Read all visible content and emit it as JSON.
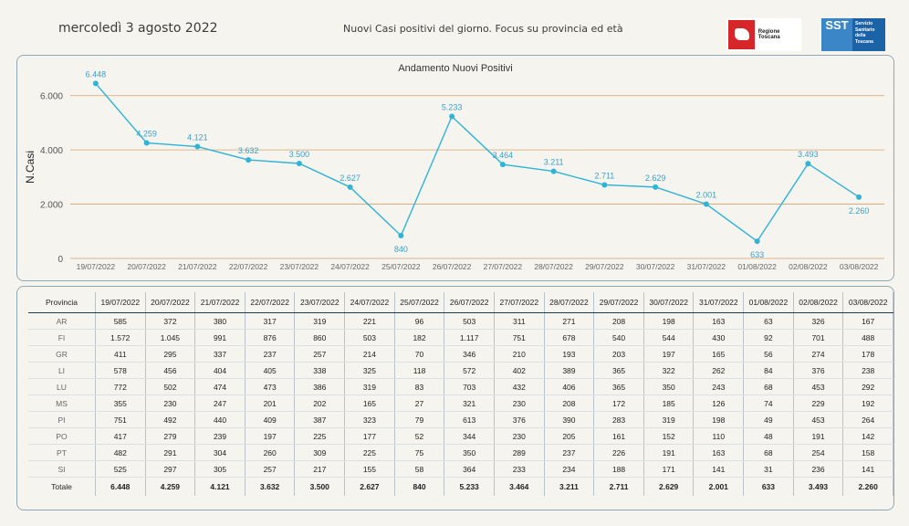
{
  "header": {
    "date": "mercoledì 3 agosto 2022",
    "subtitle": "Nuovi Casi positivi del giorno. Focus su provincia ed età",
    "logo_regione": "Regione Toscana",
    "logo_sst_short": "SST",
    "logo_sst_long": [
      "Servizio",
      "Sanitario",
      "della",
      "Toscana"
    ]
  },
  "colors": {
    "line": "#2fb3d6",
    "label": "#3aa0c8",
    "gridline": "#d9a06b",
    "border": "#8fa8b7"
  },
  "chart_data": {
    "type": "line",
    "title": "Andamento Nuovi Positivi",
    "xlabel": "",
    "ylabel": "N.Casi",
    "ylim": [
      0,
      7000
    ],
    "yticks": [
      0,
      2000,
      4000,
      6000
    ],
    "ytick_labels": [
      "0",
      "2.000",
      "4.000",
      "6.000"
    ],
    "grid": true,
    "x": [
      "19/07/2022",
      "20/07/2022",
      "21/07/2022",
      "22/07/2022",
      "23/07/2022",
      "24/07/2022",
      "25/07/2022",
      "26/07/2022",
      "27/07/2022",
      "28/07/2022",
      "29/07/2022",
      "30/07/2022",
      "31/07/2022",
      "01/08/2022",
      "02/08/2022",
      "03/08/2022"
    ],
    "series": [
      {
        "values": [
          6448,
          4259,
          4121,
          3632,
          3500,
          2627,
          840,
          5233,
          3464,
          3211,
          2711,
          2629,
          2001,
          633,
          3493,
          2260
        ],
        "labels": [
          "6.448",
          "4.259",
          "4.121",
          "3.632",
          "3.500",
          "2.627",
          "840",
          "5.233",
          "3.464",
          "3.211",
          "2.711",
          "2.629",
          "2.001",
          "633",
          "3.493",
          "2.260"
        ]
      }
    ]
  },
  "table": {
    "header_label": "Provincia",
    "columns": [
      "19/07/2022",
      "20/07/2022",
      "21/07/2022",
      "22/07/2022",
      "23/07/2022",
      "24/07/2022",
      "25/07/2022",
      "26/07/2022",
      "27/07/2022",
      "28/07/2022",
      "29/07/2022",
      "30/07/2022",
      "31/07/2022",
      "01/08/2022",
      "02/08/2022",
      "03/08/2022"
    ],
    "rows": [
      {
        "provincia": "AR",
        "values": [
          "585",
          "372",
          "380",
          "317",
          "319",
          "221",
          "96",
          "503",
          "311",
          "271",
          "208",
          "198",
          "163",
          "63",
          "326",
          "167"
        ]
      },
      {
        "provincia": "FI",
        "values": [
          "1.572",
          "1.045",
          "991",
          "876",
          "860",
          "503",
          "182",
          "1.117",
          "751",
          "678",
          "540",
          "544",
          "430",
          "92",
          "701",
          "488"
        ]
      },
      {
        "provincia": "GR",
        "values": [
          "411",
          "295",
          "337",
          "237",
          "257",
          "214",
          "70",
          "346",
          "210",
          "193",
          "203",
          "197",
          "165",
          "56",
          "274",
          "178"
        ]
      },
      {
        "provincia": "LI",
        "values": [
          "578",
          "456",
          "404",
          "405",
          "338",
          "325",
          "118",
          "572",
          "402",
          "389",
          "365",
          "322",
          "262",
          "84",
          "376",
          "238"
        ]
      },
      {
        "provincia": "LU",
        "values": [
          "772",
          "502",
          "474",
          "473",
          "386",
          "319",
          "83",
          "703",
          "432",
          "406",
          "365",
          "350",
          "243",
          "68",
          "453",
          "292"
        ]
      },
      {
        "provincia": "MS",
        "values": [
          "355",
          "230",
          "247",
          "201",
          "202",
          "165",
          "27",
          "321",
          "230",
          "208",
          "172",
          "185",
          "126",
          "74",
          "229",
          "192"
        ]
      },
      {
        "provincia": "PI",
        "values": [
          "751",
          "492",
          "440",
          "409",
          "387",
          "323",
          "79",
          "613",
          "376",
          "390",
          "283",
          "319",
          "198",
          "49",
          "453",
          "264"
        ]
      },
      {
        "provincia": "PO",
        "values": [
          "417",
          "279",
          "239",
          "197",
          "225",
          "177",
          "52",
          "344",
          "230",
          "205",
          "161",
          "152",
          "110",
          "48",
          "191",
          "142"
        ]
      },
      {
        "provincia": "PT",
        "values": [
          "482",
          "291",
          "304",
          "260",
          "309",
          "225",
          "75",
          "350",
          "289",
          "237",
          "226",
          "191",
          "163",
          "68",
          "254",
          "158"
        ]
      },
      {
        "provincia": "SI",
        "values": [
          "525",
          "297",
          "305",
          "257",
          "217",
          "155",
          "58",
          "364",
          "233",
          "234",
          "188",
          "171",
          "141",
          "31",
          "236",
          "141"
        ]
      }
    ],
    "total": {
      "provincia": "Totale",
      "values": [
        "6.448",
        "4.259",
        "4.121",
        "3.632",
        "3.500",
        "2.627",
        "840",
        "5.233",
        "3.464",
        "3.211",
        "2.711",
        "2.629",
        "2.001",
        "633",
        "3.493",
        "2.260"
      ]
    }
  }
}
